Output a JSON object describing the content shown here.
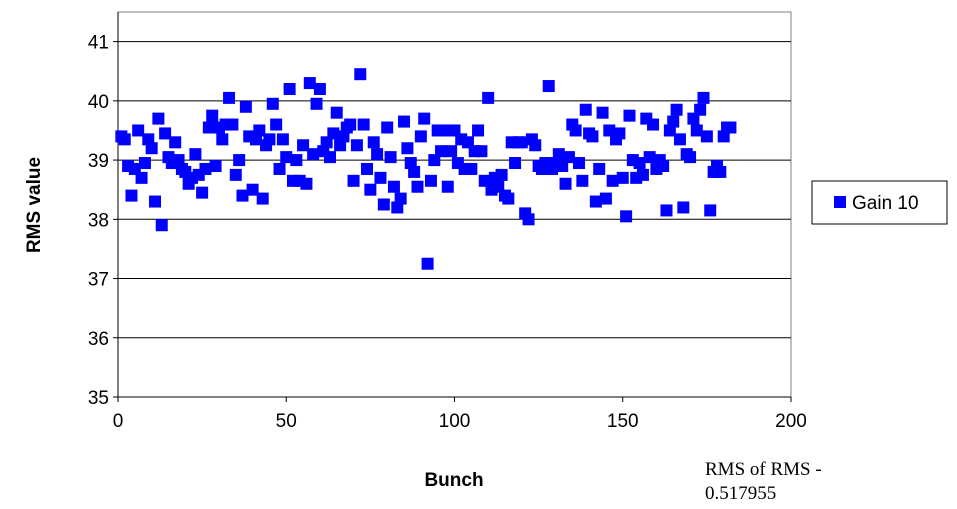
{
  "chart_data": {
    "type": "scatter",
    "title": "",
    "xlabel": "Bunch",
    "ylabel": "RMS value",
    "xlim": [
      0,
      200
    ],
    "ylim": [
      35,
      41.5
    ],
    "xticks": [
      0,
      50,
      100,
      150,
      200
    ],
    "yticks": [
      35,
      36,
      37,
      38,
      39,
      40,
      41
    ],
    "grid": "horizontal",
    "legend_position": "right",
    "marker_color": "#0000FF",
    "series": [
      {
        "name": "Gain 10",
        "x": [
          1,
          2,
          3,
          4,
          5,
          6,
          7,
          8,
          9,
          10,
          11,
          12,
          13,
          14,
          15,
          16,
          17,
          18,
          19,
          20,
          21,
          22,
          23,
          24,
          25,
          26,
          27,
          28,
          29,
          30,
          31,
          32,
          33,
          34,
          35,
          36,
          37,
          38,
          39,
          40,
          41,
          42,
          43,
          44,
          45,
          46,
          47,
          48,
          49,
          50,
          51,
          52,
          53,
          54,
          55,
          56,
          57,
          58,
          59,
          60,
          61,
          62,
          63,
          64,
          65,
          66,
          67,
          68,
          69,
          70,
          71,
          72,
          73,
          74,
          75,
          76,
          77,
          78,
          79,
          80,
          81,
          82,
          83,
          84,
          85,
          86,
          87,
          88,
          89,
          90,
          91,
          92,
          93,
          94,
          95,
          96,
          97,
          98,
          99,
          100,
          101,
          102,
          103,
          104,
          105,
          106,
          107,
          108,
          109,
          110,
          111,
          112,
          113,
          114,
          115,
          116,
          117,
          118,
          119,
          120,
          121,
          122,
          123,
          124,
          125,
          126,
          127,
          128,
          129,
          130,
          131,
          132,
          133,
          134,
          135,
          136,
          137,
          138,
          139,
          140,
          141,
          142,
          143,
          144,
          145,
          146,
          147,
          148,
          149,
          150,
          151,
          152,
          153,
          154,
          155,
          156,
          157,
          158,
          159,
          160,
          161,
          162,
          163,
          164,
          165,
          166,
          167,
          168,
          169,
          170,
          171,
          172,
          173,
          174,
          175,
          176,
          177,
          178,
          179,
          180,
          181,
          182
        ],
        "y": [
          39.4,
          39.35,
          38.9,
          38.4,
          38.85,
          39.5,
          38.7,
          38.95,
          39.35,
          39.2,
          38.3,
          39.7,
          37.9,
          39.45,
          39.05,
          38.95,
          39.3,
          39,
          38.85,
          38.8,
          38.6,
          38.7,
          39.1,
          38.75,
          38.45,
          38.85,
          39.55,
          39.75,
          38.9,
          39.55,
          39.35,
          39.6,
          40.05,
          39.6,
          38.75,
          39,
          38.4,
          39.9,
          39.4,
          38.5,
          39.35,
          39.5,
          38.35,
          39.25,
          39.35,
          39.95,
          39.6,
          38.85,
          39.35,
          39.05,
          40.2,
          38.65,
          39,
          38.65,
          39.25,
          38.6,
          40.3,
          39.1,
          39.95,
          40.2,
          39.15,
          39.3,
          39.05,
          39.45,
          39.8,
          39.25,
          39.4,
          39.55,
          39.6,
          38.65,
          39.25,
          40.45,
          39.6,
          38.85,
          38.5,
          39.3,
          39.1,
          38.7,
          38.25,
          39.55,
          39.05,
          38.55,
          38.2,
          38.35,
          39.65,
          39.2,
          38.95,
          38.8,
          38.55,
          39.4,
          39.7,
          37.25,
          38.65,
          39,
          39.5,
          39.15,
          39.5,
          38.55,
          39.15,
          39.5,
          38.95,
          39.35,
          38.85,
          39.3,
          38.85,
          39.15,
          39.5,
          39.15,
          38.65,
          40.05,
          38.5,
          38.7,
          38.55,
          38.75,
          38.4,
          38.35,
          39.3,
          38.95,
          39.3,
          39.3,
          38.1,
          38,
          39.35,
          39.25,
          38.9,
          38.85,
          38.95,
          40.25,
          38.85,
          38.95,
          39.1,
          38.9,
          38.6,
          39.05,
          39.6,
          39.5,
          38.95,
          38.65,
          39.85,
          39.45,
          39.4,
          38.3,
          38.85,
          39.8,
          38.35,
          39.5,
          38.65,
          39.35,
          39.45,
          38.7,
          38.05,
          39.75,
          39,
          38.7,
          38.95,
          38.75,
          39.7,
          39.05,
          39.6,
          38.85,
          39,
          38.9,
          38.15,
          39.5,
          39.65,
          39.85,
          39.35,
          38.2,
          39.1,
          39.05,
          39.7,
          39.5,
          39.85,
          40.05,
          39.4,
          38.15,
          38.8,
          38.9,
          38.8,
          39.4,
          39.55,
          39.55
        ]
      }
    ],
    "legend": [
      "Gain 10"
    ]
  },
  "annotation": {
    "line1": "RMS of RMS -",
    "line2": "0.517955"
  }
}
